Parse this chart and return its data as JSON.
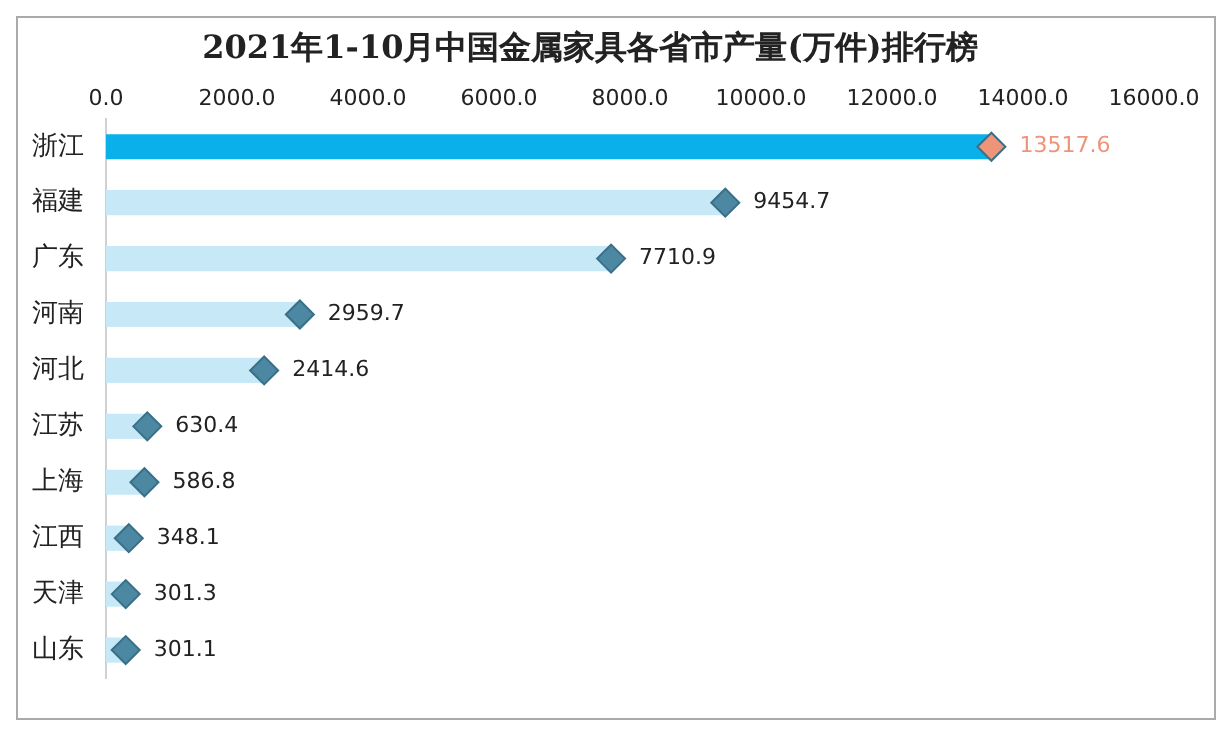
{
  "chart_data": {
    "type": "bar",
    "orientation": "horizontal",
    "title": "2021年1-10月中国金属家具各省市产量(万件)排行榜",
    "categories": [
      "浙江",
      "福建",
      "广东",
      "河南",
      "河北",
      "江苏",
      "上海",
      "江西",
      "天津",
      "山东"
    ],
    "series": [
      {
        "colors": [
          "#0ab0ea",
          "#c6e8f7",
          "#c6e8f7",
          "#c6e8f7",
          "#c6e8f7",
          "#c6e8f7",
          "#c6e8f7",
          "#c6e8f7",
          "#c6e8f7",
          "#c6e8f7"
        ],
        "values": [
          13517.6,
          9454.7,
          7710.9,
          2959.7,
          2414.6,
          630.4,
          586.8,
          348.1,
          301.3,
          301.1
        ],
        "value_labels": [
          "13517.6",
          "9454.7",
          "7710.9",
          "2959.7",
          "2414.6",
          "630.4",
          "586.8",
          "348.1",
          "301.3",
          "301.1"
        ]
      },
      {
        "type": "scatter",
        "marker": "diamond",
        "colors": [
          "#ee9479",
          "#4d88a3",
          "#4d88a3",
          "#4d88a3",
          "#4d88a3",
          "#4d88a3",
          "#4d88a3",
          "#4d88a3",
          "#4d88a3",
          "#4d88a3"
        ],
        "values": [
          13517.6,
          9454.7,
          7710.9,
          2959.7,
          2414.6,
          630.4,
          586.8,
          348.1,
          301.3,
          301.1
        ]
      }
    ],
    "xlim": [
      0,
      16000
    ],
    "xticks": [
      {
        "value": 0,
        "label": "0.0"
      },
      {
        "value": 2000,
        "label": "2000.0"
      },
      {
        "value": 4000,
        "label": "4000.0"
      },
      {
        "value": 6000,
        "label": "6000.0"
      },
      {
        "value": 8000,
        "label": "8000.0"
      },
      {
        "value": 10000,
        "label": "10000.0"
      },
      {
        "value": 12000,
        "label": "12000.0"
      },
      {
        "value": 14000,
        "label": "14000.0"
      },
      {
        "value": 16000,
        "label": "16000.0"
      }
    ],
    "grid": false,
    "legend": false
  }
}
